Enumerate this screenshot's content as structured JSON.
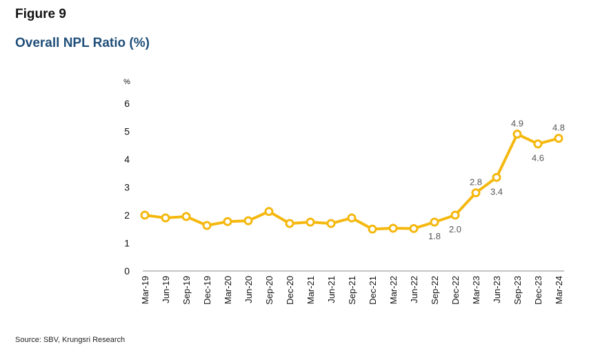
{
  "figure_label": "Figure 9",
  "title": "Overall NPL Ratio (%)",
  "source": "Source: SBV, Krungsri Research",
  "colors": {
    "title": "#1f4e79",
    "series": "#F5B80F",
    "axis": "#8a8a8a"
  },
  "chart_data": {
    "type": "line",
    "title": "Overall NPL Ratio (%)",
    "ylabel": "%",
    "xlabel": "",
    "ylim": [
      0,
      6
    ],
    "yticks": [
      "0",
      "1",
      "2",
      "3",
      "4",
      "5",
      "6"
    ],
    "grid": false,
    "categories": [
      "Mar-19",
      "Jun-19",
      "Sep-19",
      "Dec-19",
      "Mar-20",
      "Jun-20",
      "Sep-20",
      "Dec-20",
      "Mar-21",
      "Jun-21",
      "Sep-21",
      "Dec-21",
      "Mar-22",
      "Jun-22",
      "Sep-22",
      "Dec-22",
      "Mar-23",
      "Jun-23",
      "Sep-23",
      "Dec-23",
      "Mar-24"
    ],
    "series": [
      {
        "values": [
          2.0,
          1.9,
          1.95,
          1.63,
          1.77,
          1.8,
          2.13,
          1.7,
          1.75,
          1.7,
          1.9,
          1.5,
          1.53,
          1.52,
          1.75,
          2.0,
          2.8,
          3.35,
          4.9,
          4.55,
          4.75
        ]
      }
    ],
    "data_labels": [
      {
        "index": 14,
        "text": "1.8",
        "position": "below"
      },
      {
        "index": 15,
        "text": "2.0",
        "position": "below"
      },
      {
        "index": 16,
        "text": "2.8",
        "position": "above"
      },
      {
        "index": 17,
        "text": "3.4",
        "position": "below"
      },
      {
        "index": 18,
        "text": "4.9",
        "position": "above"
      },
      {
        "index": 19,
        "text": "4.6",
        "position": "below"
      },
      {
        "index": 20,
        "text": "4.8",
        "position": "above"
      }
    ]
  }
}
